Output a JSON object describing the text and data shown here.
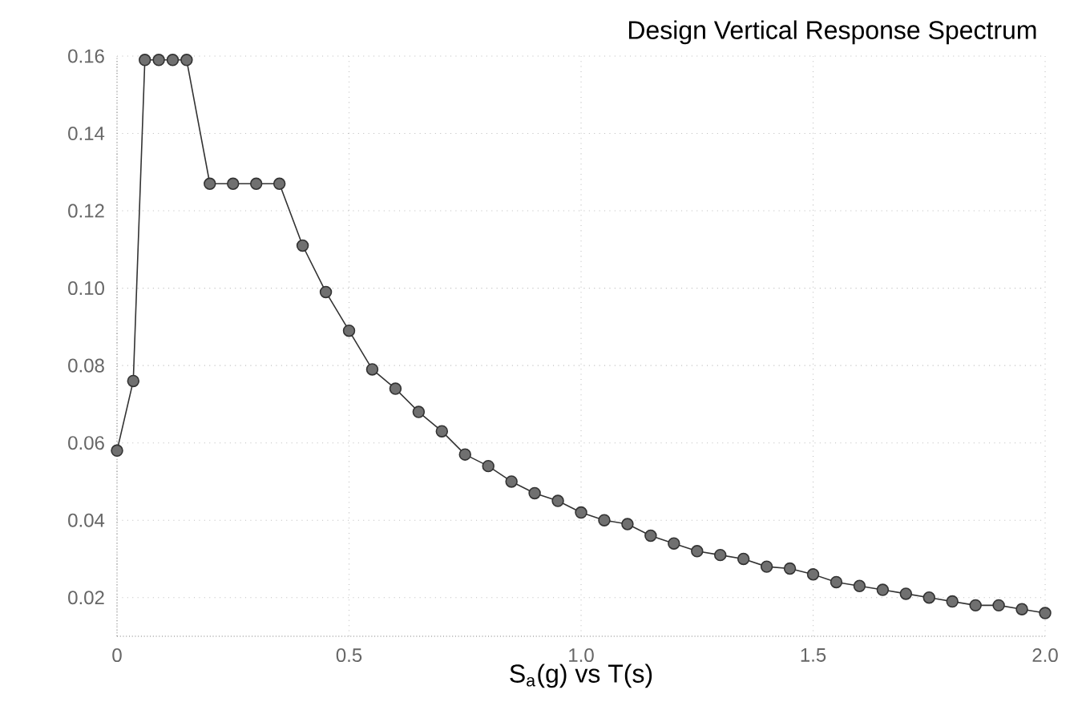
{
  "chart_data": {
    "type": "line",
    "title": "Design Vertical Response Spectrum",
    "xlabel": "S$_{a}$(g) vs T(s)",
    "x": [
      0,
      0.035,
      0.06,
      0.09,
      0.12,
      0.15,
      0.2,
      0.25,
      0.3,
      0.35,
      0.4,
      0.45,
      0.5,
      0.55,
      0.6,
      0.65,
      0.7,
      0.75,
      0.8,
      0.85,
      0.9,
      0.95,
      1.0,
      1.05,
      1.1,
      1.15,
      1.2,
      1.25,
      1.3,
      1.35,
      1.4,
      1.45,
      1.5,
      1.55,
      1.6,
      1.65,
      1.7,
      1.75,
      1.8,
      1.85,
      1.9,
      1.95,
      2.0
    ],
    "series": [
      {
        "color": "#333333",
        "values": [
          0.058,
          0.076,
          0.159,
          0.159,
          0.159,
          0.159,
          0.127,
          0.127,
          0.127,
          0.127,
          0.111,
          0.099,
          0.089,
          0.079,
          0.074,
          0.068,
          0.063,
          0.057,
          0.054,
          0.05,
          0.047,
          0.045,
          0.042,
          0.04,
          0.039,
          0.036,
          0.034,
          0.032,
          0.031,
          0.03,
          0.028,
          0.0275,
          0.026,
          0.024,
          0.023,
          0.022,
          0.021,
          0.02,
          0.019,
          0.018,
          0.018,
          0.017,
          0.016
        ]
      }
    ],
    "xlim": [
      0,
      2.0
    ],
    "ylim": [
      0.01,
      0.16
    ],
    "xticks": [
      {
        "value": 0,
        "label": "0"
      },
      0.5,
      {
        "value": 1.0,
        "label": "1.0"
      },
      1.5,
      {
        "value": 2.0,
        "label": "2.0"
      }
    ],
    "yticks": [
      0.02,
      0.04,
      0.06,
      0.08,
      {
        "value": 0.1,
        "label": "0.10"
      },
      0.12,
      0.14,
      0.16
    ],
    "grid": true,
    "marker": "circle",
    "line_style": "solid"
  }
}
